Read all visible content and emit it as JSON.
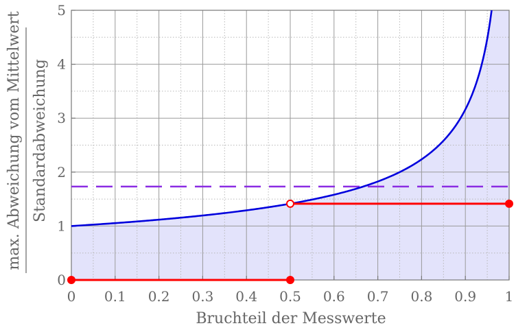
{
  "chart_data": {
    "type": "line",
    "xlabel": "Bruchteil der Messwerte",
    "ylabel": {
      "numerator": "max. Abweichung vom Mittelwert",
      "denominator": "Standardabweichung"
    },
    "xlim": [
      0,
      1
    ],
    "ylim": [
      0,
      5
    ],
    "x_ticks": [
      "0",
      "0.1",
      "0.2",
      "0.3",
      "0.4",
      "0.5",
      "0.6",
      "0.7",
      "0.8",
      "0.9",
      "1"
    ],
    "y_ticks": [
      "0",
      "1",
      "2",
      "3",
      "4",
      "5"
    ],
    "grid": true,
    "series": [
      {
        "kind": "curve",
        "formula": "1/sqrt(1-x)",
        "color": "#0000dd",
        "fill": "#e3e3fb",
        "x": [
          0,
          0.1,
          0.2,
          0.3,
          0.4,
          0.5,
          0.6,
          0.7,
          0.8,
          0.9,
          0.96
        ],
        "y": [
          1.0,
          1.054,
          1.118,
          1.195,
          1.291,
          1.414,
          1.581,
          1.826,
          2.236,
          3.162,
          5.0
        ]
      },
      {
        "kind": "dashed-line",
        "color": "#8a2be2",
        "y": 1.732
      },
      {
        "kind": "step",
        "color": "#ff0000",
        "segments": [
          {
            "x": [
              0,
              0.5
            ],
            "y": 0,
            "start": "filled",
            "end": "filled"
          },
          {
            "x": [
              0.5,
              1
            ],
            "y": 1.414,
            "start": "open",
            "end": "filled"
          }
        ]
      }
    ]
  }
}
